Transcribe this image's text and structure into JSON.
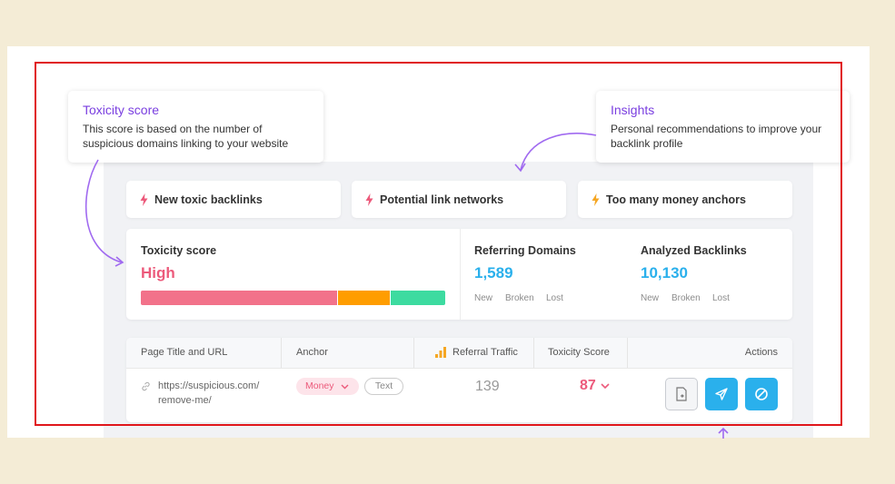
{
  "callouts": {
    "toxicity": {
      "title": "Toxicity score",
      "text": "This score is based on the number of suspicious domains linking to your website"
    },
    "insights": {
      "title": "Insights",
      "text": "Personal recommendations to improve your backlink profile"
    }
  },
  "issues": [
    {
      "label": "New toxic backlinks",
      "icon": "red-bolt-icon"
    },
    {
      "label": "Potential link networks",
      "icon": "red-bolt-icon"
    },
    {
      "label": "Too many money anchors",
      "icon": "orange-bolt-icon"
    }
  ],
  "stats": {
    "toxicity": {
      "label": "Toxicity score",
      "value": "High",
      "bar_segments": [
        {
          "share": 0.65,
          "color": "#f2728a"
        },
        {
          "share": 0.17,
          "color": "#ff9d00"
        },
        {
          "share": 0.18,
          "color": "#3ddba0"
        }
      ]
    },
    "referring_domains": {
      "label": "Referring Domains",
      "value": "1,589",
      "new": "New",
      "broken": "Broken",
      "lost": "Lost"
    },
    "analyzed_backlinks": {
      "label": "Analyzed Backlinks",
      "value": "10,130",
      "new": "New",
      "broken": "Broken",
      "lost": "Lost"
    }
  },
  "table": {
    "headers": {
      "page": "Page Title and URL",
      "anchor": "Anchor",
      "traffic": "Referral Traffic",
      "toxicity": "Toxicity Score",
      "actions": "Actions"
    },
    "rows": [
      {
        "url_line1": "https://suspicious.com/",
        "url_line2": "remove-me/",
        "anchor_tag": "Money",
        "anchor_type": "Text",
        "traffic": "139",
        "toxicity_score": "87"
      }
    ]
  },
  "colors": {
    "accent_purple": "#7a3fe0",
    "high": "#ec5a7b",
    "blue": "#2ab0ec",
    "frame_red": "#e0161b"
  }
}
